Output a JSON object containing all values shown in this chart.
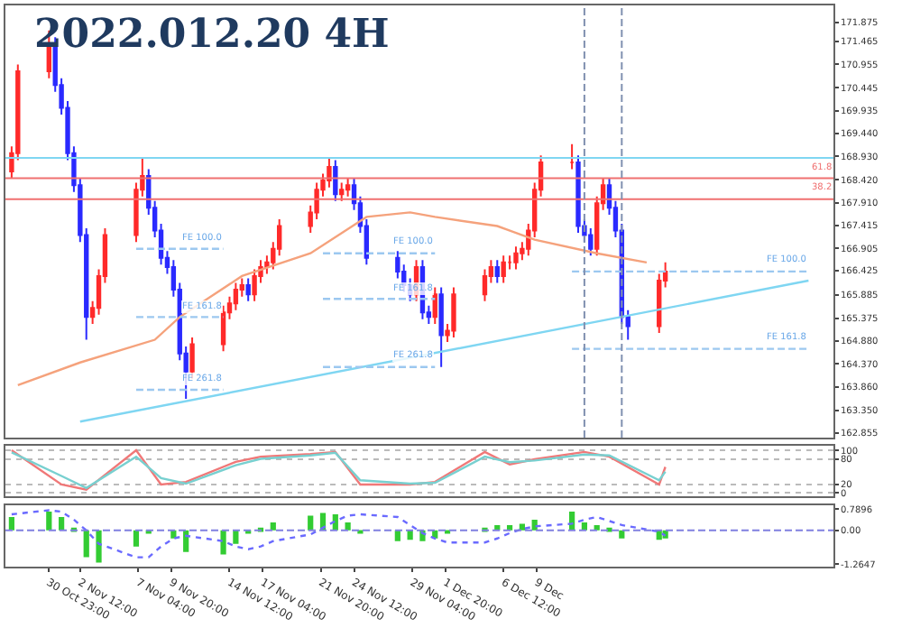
{
  "chart_data": [
    {
      "type": "candlestick",
      "title": "2022.012.20 4H",
      "x": [
        "2022-10-28T00:00",
        "2022-10-28T12:00",
        "2022-10-31T00:00",
        "2022-10-31T12:00",
        "2022-11-01T00:00",
        "2022-11-01T12:00",
        "2022-11-02T00:00",
        "2022-11-02T12:00",
        "2022-11-03T00:00",
        "2022-11-03T12:00",
        "2022-11-04T00:00",
        "2022-11-04T12:00",
        "2022-11-07T00:00",
        "2022-11-07T12:00",
        "2022-11-08T00:00",
        "2022-11-08T12:00",
        "2022-11-09T00:00",
        "2022-11-09T12:00",
        "2022-11-10T00:00",
        "2022-11-10T12:00",
        "2022-11-11T00:00",
        "2022-11-11T12:00",
        "2022-11-14T00:00",
        "2022-11-14T12:00",
        "2022-11-15T00:00",
        "2022-11-15T12:00",
        "2022-11-16T00:00",
        "2022-11-16T12:00",
        "2022-11-17T00:00",
        "2022-11-17T12:00",
        "2022-11-18T00:00",
        "2022-11-18T12:00",
        "2022-11-21T00:00",
        "2022-11-21T12:00",
        "2022-11-22T00:00",
        "2022-11-22T12:00",
        "2022-11-23T00:00",
        "2022-11-23T12:00",
        "2022-11-24T00:00",
        "2022-11-24T12:00",
        "2022-11-25T00:00",
        "2022-11-25T12:00",
        "2022-11-28T00:00",
        "2022-11-28T12:00",
        "2022-11-29T00:00",
        "2022-11-29T12:00",
        "2022-11-30T00:00",
        "2022-11-30T12:00",
        "2022-12-01T00:00",
        "2022-12-01T12:00",
        "2022-12-02T00:00",
        "2022-12-02T12:00",
        "2022-12-05T00:00",
        "2022-12-05T12:00",
        "2022-12-06T00:00",
        "2022-12-06T12:00",
        "2022-12-07T00:00",
        "2022-12-07T12:00",
        "2022-12-08T00:00",
        "2022-12-08T12:00",
        "2022-12-09T00:00",
        "2022-12-09T12:00",
        "2022-12-12T00:00",
        "2022-12-12T12:00",
        "2022-12-13T00:00",
        "2022-12-13T12:00",
        "2022-12-14T00:00",
        "2022-12-14T12:00",
        "2022-12-15T00:00",
        "2022-12-15T12:00",
        "2022-12-16T00:00",
        "2022-12-16T12:00",
        "2022-12-19T00:00",
        "2022-12-19T12:00"
      ],
      "ohlc": [
        [
          168.6,
          169.15,
          168.45,
          169.0
        ],
        [
          169.0,
          170.95,
          168.85,
          170.8
        ],
        [
          170.8,
          171.7,
          170.65,
          171.4
        ],
        [
          171.4,
          171.55,
          170.35,
          170.5
        ],
        [
          170.5,
          170.65,
          169.85,
          170.0
        ],
        [
          170.0,
          170.15,
          168.85,
          169.0
        ],
        [
          169.0,
          169.15,
          168.15,
          168.3
        ],
        [
          168.3,
          168.45,
          167.05,
          167.2
        ],
        [
          167.2,
          167.35,
          164.9,
          165.4
        ],
        [
          165.4,
          165.75,
          165.25,
          165.6
        ],
        [
          165.6,
          166.45,
          165.45,
          166.3
        ],
        [
          166.3,
          167.35,
          166.15,
          167.2
        ],
        [
          167.2,
          168.35,
          167.05,
          168.2
        ],
        [
          168.2,
          168.9,
          168.05,
          168.5
        ],
        [
          168.5,
          168.65,
          167.65,
          167.8
        ],
        [
          167.8,
          167.95,
          167.15,
          167.3
        ],
        [
          167.3,
          167.45,
          166.55,
          166.7
        ],
        [
          166.7,
          166.85,
          166.35,
          166.5
        ],
        [
          166.5,
          166.65,
          165.85,
          166.0
        ],
        [
          166.0,
          166.15,
          164.45,
          164.6
        ],
        [
          164.6,
          164.75,
          163.6,
          164.2
        ],
        [
          164.2,
          164.95,
          164.05,
          164.8
        ],
        [
          164.8,
          165.65,
          164.65,
          165.5
        ],
        [
          165.5,
          165.85,
          165.35,
          165.7
        ],
        [
          165.7,
          166.15,
          165.55,
          166.0
        ],
        [
          166.0,
          166.25,
          165.85,
          166.1
        ],
        [
          166.1,
          166.25,
          165.75,
          165.9
        ],
        [
          165.9,
          166.45,
          165.75,
          166.3
        ],
        [
          166.3,
          166.65,
          166.15,
          166.5
        ],
        [
          166.5,
          166.75,
          166.35,
          166.6
        ],
        [
          166.6,
          167.05,
          166.45,
          166.9
        ],
        [
          166.9,
          167.55,
          166.75,
          167.4
        ],
        [
          167.4,
          167.85,
          167.25,
          167.7
        ],
        [
          167.7,
          168.35,
          167.55,
          168.2
        ],
        [
          168.2,
          168.55,
          168.05,
          168.4
        ],
        [
          168.4,
          168.9,
          168.25,
          168.7
        ],
        [
          168.7,
          168.85,
          167.95,
          168.1
        ],
        [
          168.1,
          168.35,
          167.95,
          168.2
        ],
        [
          168.2,
          168.45,
          168.05,
          168.3
        ],
        [
          168.3,
          168.45,
          167.75,
          167.9
        ],
        [
          167.9,
          168.05,
          167.25,
          167.4
        ],
        [
          167.4,
          167.55,
          166.55,
          166.7
        ],
        [
          166.7,
          166.85,
          166.25,
          166.4
        ],
        [
          166.4,
          166.55,
          165.95,
          166.1
        ],
        [
          166.1,
          166.25,
          165.75,
          165.9
        ],
        [
          165.9,
          166.65,
          165.75,
          166.5
        ],
        [
          166.5,
          166.65,
          165.35,
          165.5
        ],
        [
          165.5,
          165.65,
          165.25,
          165.4
        ],
        [
          165.4,
          166.05,
          165.25,
          165.9
        ],
        [
          165.9,
          166.05,
          164.3,
          165.0
        ],
        [
          165.0,
          165.25,
          164.85,
          165.1
        ],
        [
          165.1,
          166.05,
          164.95,
          165.9
        ],
        [
          165.9,
          166.45,
          165.75,
          166.3
        ],
        [
          166.3,
          166.65,
          166.15,
          166.5
        ],
        [
          166.5,
          166.65,
          166.15,
          166.3
        ],
        [
          166.3,
          166.75,
          166.15,
          166.6
        ],
        [
          166.6,
          166.75,
          166.45,
          166.6
        ],
        [
          166.6,
          166.95,
          166.45,
          166.8
        ],
        [
          166.8,
          167.05,
          166.65,
          166.9
        ],
        [
          166.9,
          167.45,
          166.75,
          167.3
        ],
        [
          167.3,
          168.35,
          167.15,
          168.2
        ],
        [
          168.2,
          168.95,
          168.05,
          168.8
        ],
        [
          168.8,
          169.2,
          168.65,
          168.8
        ],
        [
          168.8,
          168.95,
          167.25,
          167.4
        ],
        [
          167.4,
          167.55,
          167.05,
          167.2
        ],
        [
          167.2,
          167.35,
          166.75,
          166.9
        ],
        [
          166.9,
          168.05,
          166.75,
          167.9
        ],
        [
          167.9,
          168.45,
          167.75,
          168.3
        ],
        [
          168.3,
          168.45,
          167.65,
          167.8
        ],
        [
          167.8,
          167.95,
          167.15,
          167.3
        ],
        [
          167.3,
          167.45,
          165.25,
          165.4
        ],
        [
          165.4,
          165.55,
          164.9,
          165.2
        ],
        [
          165.2,
          166.35,
          165.05,
          166.2
        ],
        [
          166.2,
          166.6,
          166.05,
          166.4
        ]
      ],
      "colors": [
        "#ff2a2a",
        "#ff2a2a",
        "#ff2a2a",
        "#2a2aff",
        "#2a2aff",
        "#2a2aff",
        "#2a2aff",
        "#2a2aff",
        "#2a2aff",
        "#ff2a2a",
        "#ff2a2a",
        "#ff2a2a",
        "#ff2a2a",
        "#ff2a2a",
        "#2a2aff",
        "#2a2aff",
        "#2a2aff",
        "#2a2aff",
        "#2a2aff",
        "#2a2aff",
        "#2a2aff",
        "#ff2a2a",
        "#ff2a2a",
        "#ff2a2a",
        "#ff2a2a",
        "#ff2a2a",
        "#2a2aff",
        "#ff2a2a",
        "#ff2a2a",
        "#ff2a2a",
        "#ff2a2a",
        "#ff2a2a",
        "#ff2a2a",
        "#ff2a2a",
        "#ff2a2a",
        "#ff2a2a",
        "#2a2aff",
        "#ff2a2a",
        "#ff2a2a",
        "#2a2aff",
        "#2a2aff",
        "#2a2aff",
        "#2a2aff",
        "#2a2aff",
        "#2a2aff",
        "#ff2a2a",
        "#2a2aff",
        "#2a2aff",
        "#ff2a2a",
        "#2a2aff",
        "#ff2a2a",
        "#ff2a2a",
        "#ff2a2a",
        "#ff2a2a",
        "#2a2aff",
        "#ff2a2a",
        "#ff2a2a",
        "#ff2a2a",
        "#ff2a2a",
        "#ff2a2a",
        "#ff2a2a",
        "#ff2a2a",
        "#ff2a2a",
        "#2a2aff",
        "#2a2aff",
        "#2a2aff",
        "#ff2a2a",
        "#ff2a2a",
        "#2a2aff",
        "#2a2aff",
        "#2a2aff",
        "#2a2aff",
        "#ff2a2a",
        "#ff2a2a"
      ],
      "series": [
        {
          "type": "line",
          "color": "#f5a27c",
          "x": [
            "2022-10-28T12:00",
            "2022-11-02T12:00",
            "2022-11-08T12:00",
            "2022-11-10T12:00",
            "2022-11-15T12:00",
            "2022-11-21T00:00",
            "2022-11-25T12:00",
            "2022-11-29T00:00",
            "2022-12-01T00:00",
            "2022-12-06T00:00",
            "2022-12-09T00:00",
            "2022-12-14T00:00",
            "2022-12-18T00:00"
          ],
          "values": [
            163.9,
            164.4,
            164.9,
            165.4,
            166.3,
            166.8,
            167.6,
            167.7,
            167.6,
            167.4,
            167.1,
            166.8,
            166.6
          ]
        },
        {
          "type": "line",
          "color": "#7fd6f2",
          "x": [
            "2022-11-02T12:00",
            "2022-12-31T00:00"
          ],
          "values": [
            163.1,
            166.2
          ]
        },
        {
          "type": "line",
          "color": "#9cc8f0",
          "line_style": "dashed",
          "x": [
            "2022-11-07T00:00",
            "2022-11-14T00:00"
          ],
          "values": [
            166.9,
            166.9
          ]
        },
        {
          "type": "line",
          "color": "#9cc8f0",
          "line_style": "dashed",
          "x": [
            "2022-11-07T00:00",
            "2022-11-14T00:00"
          ],
          "values": [
            165.4,
            165.4
          ]
        },
        {
          "type": "line",
          "color": "#9cc8f0",
          "line_style": "dashed",
          "x": [
            "2022-11-07T00:00",
            "2022-11-14T00:00"
          ],
          "values": [
            163.8,
            163.8
          ]
        },
        {
          "type": "line",
          "color": "#9cc8f0",
          "line_style": "dashed",
          "x": [
            "2022-11-22T00:00",
            "2022-12-01T00:00"
          ],
          "values": [
            166.8,
            166.8
          ]
        },
        {
          "type": "line",
          "color": "#9cc8f0",
          "line_style": "dashed",
          "x": [
            "2022-11-22T00:00",
            "2022-12-01T00:00"
          ],
          "values": [
            165.8,
            165.8
          ]
        },
        {
          "type": "line",
          "color": "#9cc8f0",
          "line_style": "dashed",
          "x": [
            "2022-11-22T00:00",
            "2022-12-01T00:00"
          ],
          "values": [
            164.3,
            164.3
          ]
        },
        {
          "type": "line",
          "color": "#9cc8f0",
          "line_style": "dashed",
          "x": [
            "2022-12-12T00:00",
            "2022-12-31T00:00"
          ],
          "values": [
            166.4,
            166.4
          ]
        },
        {
          "type": "line",
          "color": "#9cc8f0",
          "line_style": "dashed",
          "x": [
            "2022-12-12T00:00",
            "2022-12-31T00:00"
          ],
          "values": [
            164.7,
            164.7
          ]
        }
      ],
      "xlim": [
        "2022-10-27T12:00",
        "2023-01-02T00:00"
      ],
      "ylim": [
        162.75,
        172.25
      ],
      "yticks": [
        171.875,
        171.465,
        170.955,
        170.445,
        169.935,
        {
          "value": 169.44,
          "label": "169.440"
        },
        {
          "value": 168.93,
          "label": "168.930"
        },
        {
          "value": 168.42,
          "label": "168.420"
        },
        {
          "value": 167.91,
          "label": "167.910"
        },
        167.415,
        166.905,
        166.425,
        165.885,
        165.375,
        {
          "value": 164.88,
          "label": "164.880"
        },
        {
          "value": 164.37,
          "label": "164.370"
        },
        {
          "value": 163.86,
          "label": "163.860"
        },
        {
          "value": 163.35,
          "label": "163.350"
        },
        162.855
      ],
      "ref_lines": [
        {
          "axis": "y",
          "value": 168.9,
          "color": "#7fd6f2",
          "line_style": "solid"
        },
        {
          "axis": "y",
          "value": 168.45,
          "color": "#f07070",
          "line_style": "solid"
        },
        {
          "axis": "y",
          "value": 167.99,
          "color": "#f07070",
          "line_style": "solid"
        },
        {
          "axis": "x",
          "value": "2022-12-13T00:00",
          "color": "#8090b0",
          "line_style": "dashed"
        },
        {
          "axis": "x",
          "value": "2022-12-16T00:00",
          "color": "#8090b0",
          "line_style": "dashed"
        }
      ],
      "annotations": [
        {
          "text": "FE 100.0",
          "x": "2022-11-14T00:00",
          "y": 166.9
        },
        {
          "text": "FE 161.8",
          "x": "2022-11-14T00:00",
          "y": 165.4
        },
        {
          "text": "FE 261.8",
          "x": "2022-11-14T00:00",
          "y": 163.8
        },
        {
          "text": "FE 100.0",
          "x": "2022-12-01T00:00",
          "y": 166.8
        },
        {
          "text": "FE 161.8",
          "x": "2022-12-01T00:00",
          "y": 165.8
        },
        {
          "text": "FE 261.8",
          "x": "2022-12-01T00:00",
          "y": 164.3
        },
        {
          "text": "FE 100.0",
          "x": "2022-12-31T00:00",
          "y": 166.4
        },
        {
          "text": "FE 161.8",
          "x": "2022-12-31T00:00",
          "y": 164.7
        },
        {
          "text": "61.8",
          "x": "2023-01-02T00:00",
          "y": 168.45
        },
        {
          "text": "38.2",
          "x": "2023-01-02T00:00",
          "y": 167.99
        }
      ],
      "tick_labels": "y"
    },
    {
      "type": "line",
      "x": [
        "2022-10-28T00:00",
        "2022-11-01T00:00",
        "2022-11-03T00:00",
        "2022-11-07T00:00",
        "2022-11-09T00:00",
        "2022-11-11T00:00",
        "2022-11-15T00:00",
        "2022-11-17T00:00",
        "2022-11-21T00:00",
        "2022-11-23T00:00",
        "2022-11-25T00:00",
        "2022-11-29T00:00",
        "2022-12-01T00:00",
        "2022-12-05T00:00",
        "2022-12-07T00:00",
        "2022-12-09T00:00",
        "2022-12-13T00:00",
        "2022-12-15T00:00",
        "2022-12-19T00:00",
        "2022-12-19T12:00"
      ],
      "series": [
        {
          "color": "#f07878",
          "values": [
            100,
            20,
            8,
            100,
            20,
            26,
            73,
            85,
            91,
            96,
            20,
            20,
            26,
            96,
            67,
            79,
            96,
            85,
            20,
            61
          ]
        },
        {
          "color": "#78d0d0",
          "values": [
            95,
            40,
            12,
            85,
            35,
            22,
            65,
            80,
            88,
            94,
            30,
            22,
            24,
            85,
            72,
            76,
            90,
            88,
            30,
            50
          ]
        }
      ],
      "xlim": [
        "2022-10-27T12:00",
        "2023-01-02T00:00"
      ],
      "ylim": [
        -8,
        110
      ],
      "yticks": [
        0,
        20,
        80,
        100
      ],
      "grid": "y",
      "tick_labels": "y"
    },
    {
      "type": "bar",
      "x": [
        "2022-10-28T00:00",
        "2022-10-31T00:00",
        "2022-11-01T00:00",
        "2022-11-02T00:00",
        "2022-11-03T00:00",
        "2022-11-04T00:00",
        "2022-11-07T00:00",
        "2022-11-08T00:00",
        "2022-11-09T00:00",
        "2022-11-10T00:00",
        "2022-11-11T00:00",
        "2022-11-14T00:00",
        "2022-11-15T00:00",
        "2022-11-16T00:00",
        "2022-11-17T00:00",
        "2022-11-18T00:00",
        "2022-11-21T00:00",
        "2022-11-22T00:00",
        "2022-11-23T00:00",
        "2022-11-24T00:00",
        "2022-11-25T00:00",
        "2022-11-28T00:00",
        "2022-11-29T00:00",
        "2022-11-30T00:00",
        "2022-12-01T00:00",
        "2022-12-02T00:00",
        "2022-12-05T00:00",
        "2022-12-06T00:00",
        "2022-12-07T00:00",
        "2022-12-08T00:00",
        "2022-12-09T00:00",
        "2022-12-12T00:00",
        "2022-12-13T00:00",
        "2022-12-14T00:00",
        "2022-12-15T00:00",
        "2022-12-16T00:00",
        "2022-12-19T00:00",
        "2022-12-19T12:00"
      ],
      "series": [
        {
          "color": "#33cc33",
          "values": [
            0.5,
            0.7,
            0.5,
            0.1,
            -1.0,
            -1.2,
            -0.6,
            -0.1,
            0.0,
            -0.3,
            -0.8,
            -0.9,
            -0.5,
            -0.1,
            0.1,
            0.3,
            0.55,
            0.65,
            0.6,
            0.3,
            -0.1,
            -0.4,
            -0.35,
            -0.4,
            -0.3,
            -0.1,
            0.1,
            0.2,
            0.2,
            0.25,
            0.4,
            0.7,
            0.3,
            0.2,
            0.1,
            -0.3,
            -0.35,
            -0.3
          ]
        },
        {
          "type": "line",
          "line_style": "dotted",
          "color": "#6a6aff",
          "values": [
            0.6,
            0.75,
            0.7,
            0.4,
            0.0,
            -0.5,
            -1.0,
            -1.0,
            -0.6,
            -0.3,
            -0.2,
            -0.4,
            -0.6,
            -0.7,
            -0.6,
            -0.4,
            -0.15,
            0.1,
            0.35,
            0.55,
            0.6,
            0.5,
            0.2,
            -0.1,
            -0.3,
            -0.45,
            -0.45,
            -0.3,
            -0.1,
            0.05,
            0.15,
            0.25,
            0.4,
            0.5,
            0.35,
            0.2,
            -0.05,
            -0.2
          ]
        }
      ],
      "xlim": [
        "2022-10-27T12:00",
        "2023-01-02T00:00"
      ],
      "ylim": [
        -1.35,
        0.95
      ],
      "yticks": [
        {
          "value": 0.7896,
          "label": "0.7896"
        },
        {
          "value": 0,
          "label": "0.00"
        },
        {
          "value": -1.2647,
          "label": "-1.2647"
        }
      ],
      "xticks": [
        {
          "value": "2022-10-30T23:00",
          "label": "30 Oct 23:00"
        },
        {
          "value": "2022-11-02T12:00",
          "label": "2 Nov 12:00"
        },
        {
          "value": "2022-11-07T04:00",
          "label": "7 Nov 04:00"
        },
        {
          "value": "2022-11-09T20:00",
          "label": "9 Nov 20:00"
        },
        {
          "value": "2022-11-14T12:00",
          "label": "14 Nov 12:00"
        },
        {
          "value": "2022-11-17T04:00",
          "label": "17 Nov 04:00"
        },
        {
          "value": "2022-11-21T20:00",
          "label": "21 Nov 20:00"
        },
        {
          "value": "2022-11-24T12:00",
          "label": "24 Nov 12:00"
        },
        {
          "value": "2022-11-29T04:00",
          "label": "29 Nov 04:00"
        },
        {
          "value": "2022-12-01T20:00",
          "label": "1 Dec 20:00"
        },
        {
          "value": "2022-12-06T12:00",
          "label": "6 Dec 12:00"
        },
        {
          "value": "2022-12-09T04:00",
          "label": "9 Dec"
        }
      ],
      "ref_lines": [
        {
          "axis": "y",
          "value": 0,
          "color": "#8080e0",
          "line_style": "dashed"
        }
      ]
    }
  ]
}
